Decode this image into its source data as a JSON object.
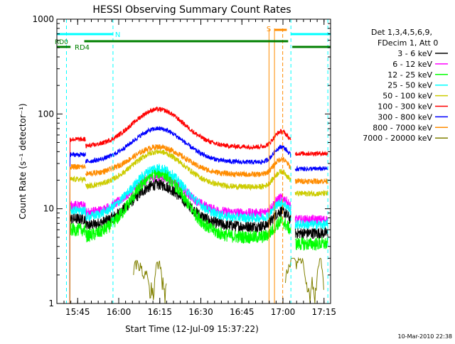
{
  "chart_data": {
    "type": "line",
    "title": "HESSI Observing Summary Count Rates",
    "xlabel": "Start Time (12-Jul-09 15:37:22)",
    "ylabel": "Count Rate (s⁻¹ detector⁻¹)",
    "yscale": "log",
    "ylim": [
      1,
      1000
    ],
    "xlim_minutes": [
      0,
      100
    ],
    "x_ticks": [
      "15:45",
      "16:00",
      "16:15",
      "16:30",
      "16:45",
      "17:00",
      "17:15"
    ],
    "x_tick_minutes": [
      7.6,
      22.6,
      37.6,
      52.6,
      67.6,
      82.6,
      97.6
    ],
    "y_ticks": [
      "1",
      "10",
      "100",
      "1000"
    ],
    "y_tick_values": [
      1,
      10,
      100,
      1000
    ],
    "legend_header": [
      "Det 1,3,4,5,6,9,",
      "FDecim 1, Att 0"
    ],
    "legend_position": "right",
    "footer_timestamp": "10-Mar-2010 22:38",
    "series": [
      {
        "name": "3 - 6 keV",
        "color": "#000000",
        "base": 6.5,
        "peak": 18,
        "noise": 0.06
      },
      {
        "name": "6 - 12 keV",
        "color": "#ff00ff",
        "base": 9,
        "peak": 22,
        "noise": 0.05
      },
      {
        "name": "12 - 25 keV",
        "color": "#00ff00",
        "base": 5,
        "peak": 24,
        "noise": 0.07
      },
      {
        "name": "25 - 50 keV",
        "color": "#00ffff",
        "base": 8,
        "peak": 27,
        "noise": 0.05
      },
      {
        "name": "50 - 100 keV",
        "color": "#cccc00",
        "base": 17,
        "peak": 40,
        "noise": 0.03
      },
      {
        "name": "100 - 300 keV",
        "color": "#ff0000",
        "base": 45,
        "peak": 112,
        "noise": 0.025
      },
      {
        "name": "300 - 800 keV",
        "color": "#0000ff",
        "base": 31,
        "peak": 70,
        "noise": 0.025
      },
      {
        "name": "800 - 7000 keV",
        "color": "#ff8c00",
        "base": 23,
        "peak": 45,
        "noise": 0.03
      },
      {
        "name": "7000 - 20000 keV",
        "color": "#808000",
        "base": 0,
        "peak": 2.5,
        "noise": 0.1
      }
    ],
    "flags": [
      {
        "label": "N",
        "color": "#00ffff"
      },
      {
        "label": "RD0",
        "color": "#008000"
      },
      {
        "label": "RD4",
        "color": "#008000"
      },
      {
        "label": "S",
        "color": "#ff8c00"
      }
    ]
  }
}
